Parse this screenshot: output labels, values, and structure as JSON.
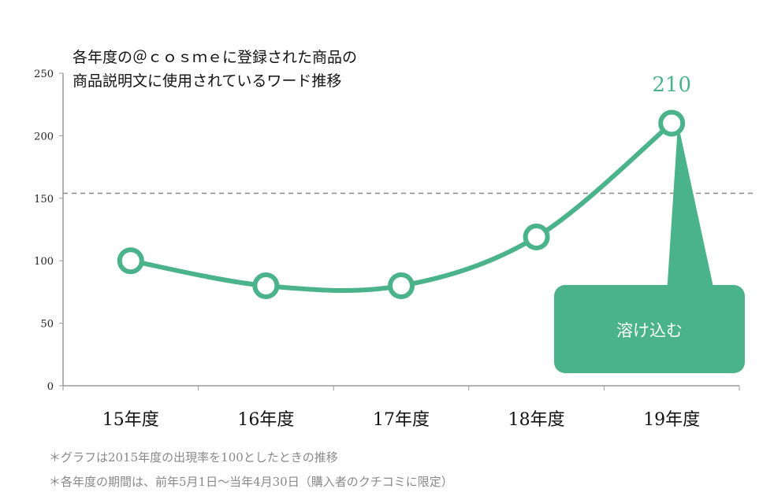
{
  "chart_data": {
    "type": "line",
    "title": [
      "各年度の＠ｃｏｓｍｅに登録された商品の",
      "商品説明文に使用されているワード推移"
    ],
    "categories": [
      "15年度",
      "16年度",
      "17年度",
      "18年度",
      "19年度"
    ],
    "values": [
      100,
      80,
      80,
      119,
      210
    ],
    "ylim": [
      0,
      250
    ],
    "yticks": [
      0,
      50,
      100,
      150,
      200,
      250
    ],
    "reference_line": 154,
    "data_label": {
      "category": "19年度",
      "text": "210"
    },
    "callout": "溶け込む",
    "grid": false,
    "colors": {
      "line": "#4bb38b",
      "axis": "#999999",
      "reference": "#888888",
      "label": "#4bb38b"
    }
  },
  "notes": [
    "＊グラフは2015年度の出現率を100としたときの推移",
    "＊各年度の期間は、前年5月1日～当年4月30日（購入者のクチコミに限定）"
  ]
}
